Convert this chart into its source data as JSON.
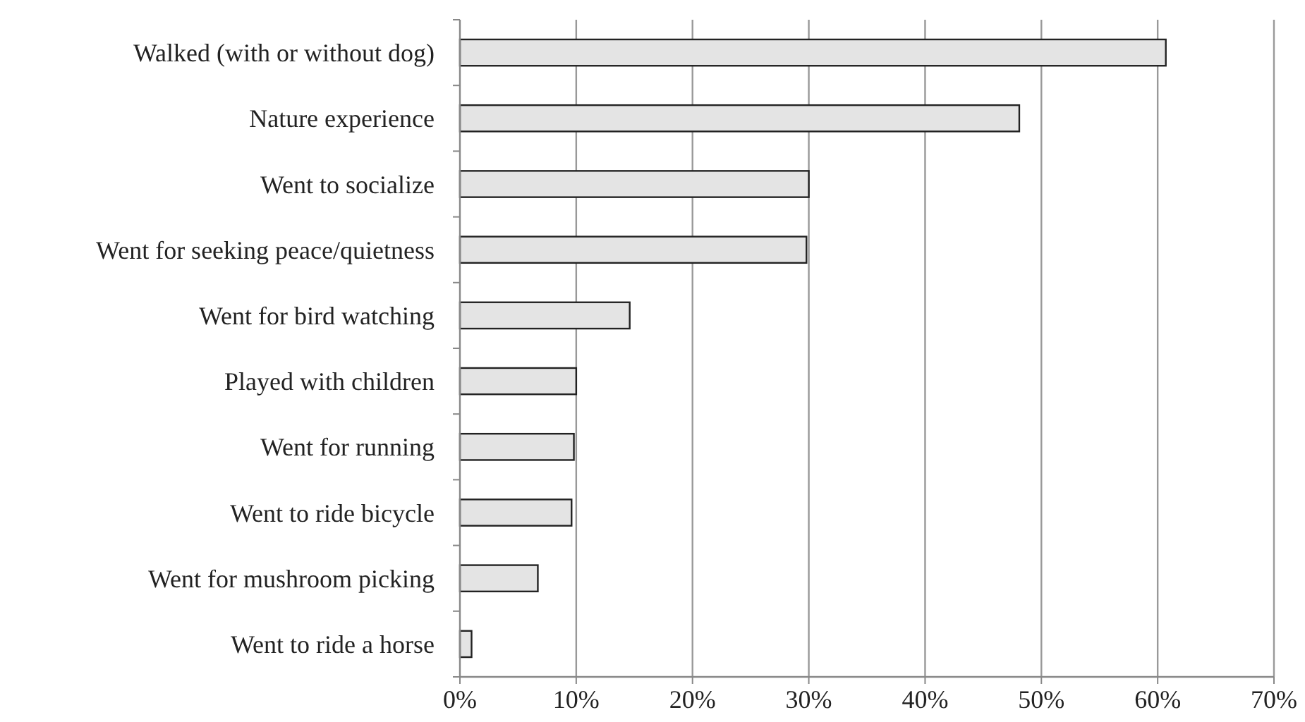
{
  "chart_data": {
    "type": "bar",
    "orientation": "horizontal",
    "categories": [
      "Walked (with or without dog)",
      "Nature experience",
      "Went to socialize",
      "Went for seeking peace/quietness",
      "Went for bird watching",
      "Played with children",
      "Went for running",
      "Went to ride bicycle",
      "Went for mushroom picking",
      "Went to ride a horse"
    ],
    "values": [
      60.7,
      48.1,
      30.0,
      29.8,
      14.6,
      10.0,
      9.8,
      9.6,
      6.7,
      1.0
    ],
    "color": "#e4e4e4",
    "xlim": [
      0,
      70
    ],
    "xticks": [
      {
        "value": 0,
        "label": "0%"
      },
      {
        "value": 10,
        "label": "10%"
      },
      {
        "value": 20,
        "label": "20%"
      },
      {
        "value": 30,
        "label": "30%"
      },
      {
        "value": 40,
        "label": "40%"
      },
      {
        "value": 50,
        "label": "50%"
      },
      {
        "value": 60,
        "label": "60%"
      },
      {
        "value": 70,
        "label": "70%"
      }
    ],
    "grid": "x"
  }
}
